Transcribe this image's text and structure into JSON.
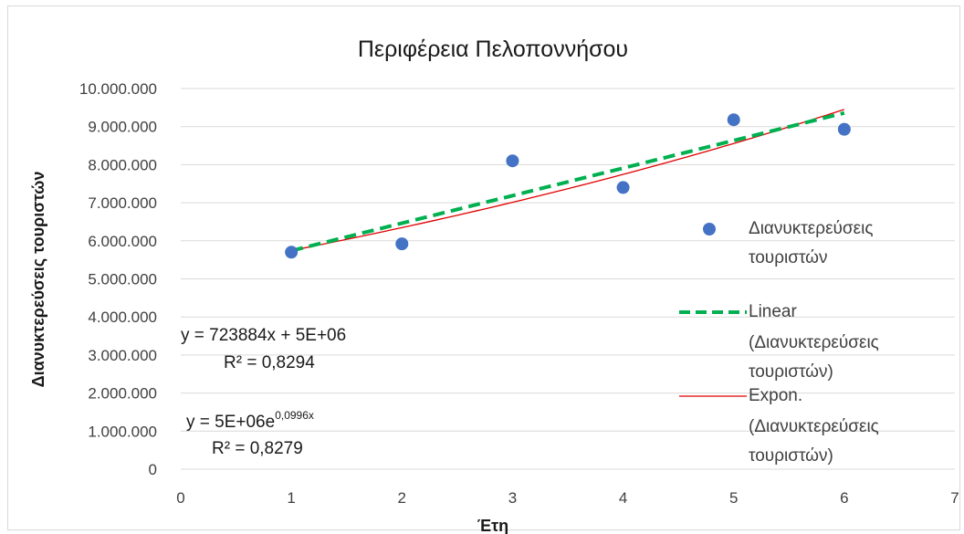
{
  "chart_data": {
    "type": "scatter",
    "title": "Περιφέρεια Πελοποννήσου",
    "xlabel": "Έτη",
    "ylabel": "Διανυκτερεύσεις  τουριστών",
    "xlim": [
      0,
      7
    ],
    "ylim": [
      0,
      10000000
    ],
    "x_ticks": [
      0,
      1,
      2,
      3,
      4,
      5,
      6,
      7
    ],
    "x_tick_labels": [
      "0",
      "1",
      "2",
      "3",
      "4",
      "5",
      "6",
      "7"
    ],
    "y_ticks": [
      0,
      1000000,
      2000000,
      3000000,
      4000000,
      5000000,
      6000000,
      7000000,
      8000000,
      9000000,
      10000000
    ],
    "y_tick_labels": [
      "0",
      "1.000.000",
      "2.000.000",
      "3.000.000",
      "4.000.000",
      "5.000.000",
      "6.000.000",
      "7.000.000",
      "8.000.000",
      "9.000.000",
      "10.000.000"
    ],
    "grid": true,
    "legend_position": "right",
    "series": [
      {
        "name": "Διανυκτερεύσεις τουριστών",
        "legend_lines": [
          "Διανυκτερεύσεις",
          "τουριστών"
        ],
        "color": "#4472C4",
        "x": [
          1,
          2,
          3,
          4,
          5,
          6
        ],
        "y": [
          5700000,
          5920000,
          8100000,
          7400000,
          9180000,
          8930000
        ]
      }
    ],
    "trendlines": [
      {
        "type": "linear",
        "name": "Linear (Διανυκτερεύσεις τουριστών)",
        "legend_lines": [
          "Linear",
          "(Διανυκτερεύσεις",
          "τουριστών)"
        ],
        "color": "#00B050",
        "slope": 723884,
        "intercept": 5015000,
        "x_range": [
          1,
          6
        ],
        "equation": "y = 723884x + 5E+06",
        "r2": "R² = 0,8294"
      },
      {
        "type": "exponential",
        "name": "Expon. (Διανυκτερεύσεις τουριστών)",
        "legend_lines": [
          "Expon.",
          "(Διανυκτερεύσεις",
          "τουριστών)"
        ],
        "color": "#E00000",
        "coefficient": 5200000,
        "rate": 0.0996,
        "x_range": [
          1,
          6
        ],
        "equation_base": "y = 5E+06e",
        "equation_exponent": "0,0996x",
        "r2": "R² = 0,8279"
      }
    ]
  }
}
